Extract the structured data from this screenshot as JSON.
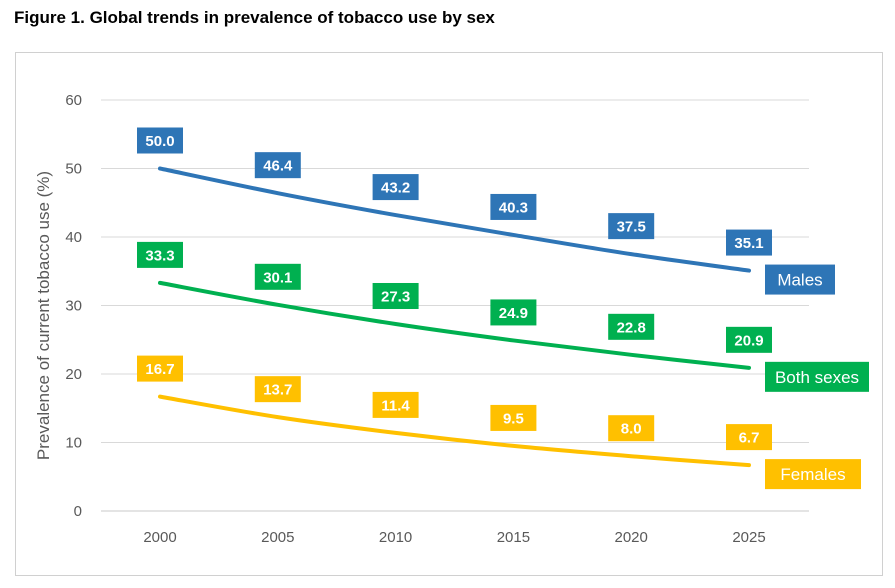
{
  "figure_title": "Figure 1. Global trends in prevalence of tobacco use by sex",
  "chart_data": {
    "type": "line",
    "title": "Figure 1. Global trends in prevalence of tobacco use by sex",
    "xlabel": "",
    "ylabel": "Prevalence of current tobacco use (%)",
    "x": [
      2000,
      2005,
      2010,
      2015,
      2020,
      2025
    ],
    "ylim": [
      0,
      60
    ],
    "yticks": [
      0,
      10,
      20,
      30,
      40,
      50,
      60
    ],
    "grid": true,
    "series": [
      {
        "name": "Males",
        "color": "#2e75b6",
        "values": [
          50.0,
          46.4,
          43.2,
          40.3,
          37.5,
          35.1
        ],
        "labels": [
          "50.0",
          "46.4",
          "43.2",
          "40.3",
          "37.5",
          "35.1"
        ]
      },
      {
        "name": "Both sexes",
        "color": "#00b050",
        "values": [
          33.3,
          30.1,
          27.3,
          24.9,
          22.8,
          20.9
        ],
        "labels": [
          "33.3",
          "30.1",
          "27.3",
          "24.9",
          "22.8",
          "20.9"
        ]
      },
      {
        "name": "Females",
        "color": "#ffc000",
        "values": [
          16.7,
          13.7,
          11.4,
          9.5,
          8.0,
          6.7
        ],
        "labels": [
          "16.7",
          "13.7",
          "11.4",
          "9.5",
          "8.0",
          "6.7"
        ]
      }
    ]
  }
}
